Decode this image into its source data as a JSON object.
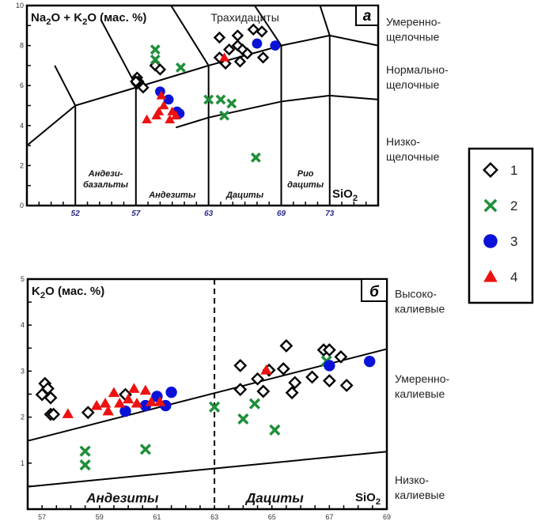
{
  "colors": {
    "diamond": "#000000",
    "cross": "#1f8f3a",
    "circle": "#0a12d8",
    "triangle": "#ee1111"
  },
  "legend": {
    "items": [
      {
        "symbol": "diamond",
        "label": "1"
      },
      {
        "symbol": "cross",
        "label": "2"
      },
      {
        "symbol": "circle",
        "label": "3"
      },
      {
        "symbol": "triangle",
        "label": "4"
      }
    ]
  },
  "chart_data": [
    {
      "type": "scatter",
      "panel_label": "а",
      "ylabel_parts": [
        "Na",
        "2",
        "O + K",
        "2",
        "O (мас. %)"
      ],
      "xlabel_parts": [
        "SiO",
        "2"
      ],
      "xlim": [
        48,
        77
      ],
      "ylim": [
        0,
        10
      ],
      "xticks": [
        52,
        57,
        63,
        69,
        73
      ],
      "yticks": [
        0,
        2,
        4,
        6,
        8,
        10
      ],
      "region_labels": [
        {
          "lines": [
            "Андези-",
            "базальты"
          ],
          "x": 54.5,
          "y": 0.9
        },
        {
          "lines": [
            "Андезиты"
          ],
          "x": 60,
          "y": 0.4
        },
        {
          "lines": [
            "Дациты"
          ],
          "x": 66,
          "y": 0.4
        },
        {
          "lines": [
            "Рио",
            "дациты"
          ],
          "x": 71,
          "y": 0.9
        },
        {
          "lines": [
            "Трахидациты"
          ],
          "x": 66,
          "y": 9.2,
          "plain": true
        }
      ],
      "side_labels": [
        {
          "lines": [
            "Умеренно-",
            "щелочные"
          ],
          "y": 9.0
        },
        {
          "lines": [
            "Нормально-",
            "щелочные"
          ],
          "y": 6.6
        },
        {
          "lines": [
            "Низко-",
            "щелочные"
          ],
          "y": 3.0
        }
      ],
      "boundaries": [
        [
          [
            48.1,
            3.05
          ],
          [
            52,
            5
          ],
          [
            57,
            5.9
          ],
          [
            63,
            7
          ],
          [
            69,
            8
          ],
          [
            73,
            8.5
          ],
          [
            77,
            8.0
          ]
        ],
        [
          [
            60.3,
            3.9
          ],
          [
            63,
            4.4
          ],
          [
            69,
            5.2
          ],
          [
            73,
            5.5
          ],
          [
            77,
            5.3
          ]
        ],
        [
          [
            52,
            0
          ],
          [
            52,
            5
          ],
          [
            50.3,
            7.0
          ]
        ],
        [
          [
            57,
            0
          ],
          [
            57,
            6
          ],
          [
            54.1,
            9.3
          ]
        ],
        [
          [
            63,
            0
          ],
          [
            63,
            7
          ],
          [
            59.9,
            10
          ]
        ],
        [
          [
            69,
            0
          ],
          [
            69,
            8
          ],
          [
            66.8,
            10
          ]
        ],
        [
          [
            73,
            0
          ],
          [
            73,
            8.5
          ],
          [
            72.2,
            10
          ]
        ]
      ],
      "series": [
        {
          "name": "1",
          "symbol": "diamond",
          "points": [
            [
              63.9,
              8.4
            ],
            [
              65.4,
              8.5
            ],
            [
              66.7,
              8.8
            ],
            [
              67.4,
              8.7
            ],
            [
              64.7,
              7.8
            ],
            [
              65.4,
              8.0
            ],
            [
              65.8,
              7.8
            ],
            [
              63.9,
              7.4
            ],
            [
              64.4,
              7.1
            ],
            [
              65.6,
              7.2
            ],
            [
              66.2,
              7.6
            ],
            [
              67.5,
              7.4
            ],
            [
              58.6,
              7.0
            ],
            [
              59.0,
              6.8
            ],
            [
              57.6,
              5.9
            ],
            [
              57.1,
              6.1
            ],
            [
              57.1,
              6.4
            ],
            [
              57.2,
              6.2
            ],
            [
              57.0,
              6.2
            ]
          ]
        },
        {
          "name": "2",
          "symbol": "cross",
          "points": [
            [
              58.6,
              7.8
            ],
            [
              58.6,
              7.3
            ],
            [
              60.7,
              6.9
            ],
            [
              63.0,
              5.3
            ],
            [
              64.0,
              5.3
            ],
            [
              64.9,
              5.1
            ],
            [
              64.3,
              4.5
            ],
            [
              66.9,
              2.4
            ]
          ]
        },
        {
          "name": "3",
          "symbol": "circle",
          "points": [
            [
              59.0,
              5.7
            ],
            [
              59.7,
              5.3
            ],
            [
              60.4,
              4.7
            ],
            [
              60.6,
              4.6
            ],
            [
              67.0,
              8.1
            ],
            [
              68.5,
              8.0
            ]
          ]
        },
        {
          "name": "4",
          "symbol": "triangle",
          "points": [
            [
              57.9,
              4.3
            ],
            [
              58.9,
              4.7
            ],
            [
              59.3,
              5.0
            ],
            [
              59.1,
              5.5
            ],
            [
              60.0,
              4.7
            ],
            [
              59.8,
              4.3
            ],
            [
              60.3,
              4.5
            ],
            [
              58.7,
              4.5
            ],
            [
              64.3,
              7.4
            ]
          ]
        }
      ]
    },
    {
      "type": "scatter",
      "panel_label": "б",
      "ylabel_parts": [
        "K",
        "2",
        "O (мас. %)"
      ],
      "xlabel_parts": [
        "SiO",
        "2"
      ],
      "xlim": [
        56.5,
        69
      ],
      "ylim": [
        0,
        5
      ],
      "xticks": [
        57,
        59,
        61,
        63,
        65,
        67,
        69
      ],
      "yticks": [
        1,
        2,
        3,
        4,
        5
      ],
      "region_labels": [
        {
          "lines": [
            "Андезиты"
          ],
          "x": 59.8,
          "y": 0.15
        },
        {
          "lines": [
            "Дациты"
          ],
          "x": 65.1,
          "y": 0.15
        }
      ],
      "side_labels": [
        {
          "lines": [
            "Высоко-",
            "калиевые"
          ],
          "y": 4.6
        },
        {
          "lines": [
            "Умеренно-",
            "калиевые"
          ],
          "y": 2.75
        },
        {
          "lines": [
            "Низко-",
            "калиевые"
          ],
          "y": 0.55
        }
      ],
      "divider_x": 63,
      "boundaries": [
        [
          [
            56.54,
            1.49
          ],
          [
            69,
            3.48
          ]
        ],
        [
          [
            56.54,
            0.49
          ],
          [
            69,
            1.25
          ]
        ]
      ],
      "series": [
        {
          "name": "1",
          "symbol": "diamond",
          "points": [
            [
              57.1,
              2.73
            ],
            [
              57.2,
              2.62
            ],
            [
              57.0,
              2.49
            ],
            [
              57.3,
              2.42
            ],
            [
              57.3,
              2.06
            ],
            [
              57.4,
              2.06
            ],
            [
              58.6,
              2.1
            ],
            [
              59.9,
              2.49
            ],
            [
              63.9,
              3.12
            ],
            [
              63.9,
              2.6
            ],
            [
              64.5,
              2.83
            ],
            [
              64.7,
              2.56
            ],
            [
              64.9,
              3.02
            ],
            [
              65.4,
              3.05
            ],
            [
              65.5,
              3.55
            ],
            [
              65.7,
              2.53
            ],
            [
              65.8,
              2.75
            ],
            [
              66.4,
              2.87
            ],
            [
              66.8,
              3.46
            ],
            [
              67.0,
              3.46
            ],
            [
              67.0,
              2.79
            ],
            [
              67.4,
              3.31
            ],
            [
              67.6,
              2.69
            ]
          ]
        },
        {
          "name": "2",
          "symbol": "cross",
          "points": [
            [
              58.5,
              1.26
            ],
            [
              58.5,
              0.96
            ],
            [
              60.6,
              1.3
            ],
            [
              63.0,
              2.22
            ],
            [
              64.0,
              1.96
            ],
            [
              64.4,
              2.29
            ],
            [
              65.1,
              1.72
            ],
            [
              66.9,
              3.22
            ]
          ]
        },
        {
          "name": "3",
          "symbol": "circle",
          "points": [
            [
              59.9,
              2.13
            ],
            [
              60.6,
              2.25
            ],
            [
              61.0,
              2.45
            ],
            [
              61.3,
              2.25
            ],
            [
              61.5,
              2.54
            ],
            [
              67.0,
              3.12
            ],
            [
              68.4,
              3.21
            ]
          ]
        },
        {
          "name": "4",
          "symbol": "triangle",
          "points": [
            [
              57.9,
              2.07
            ],
            [
              58.9,
              2.25
            ],
            [
              59.2,
              2.3
            ],
            [
              59.3,
              2.13
            ],
            [
              59.5,
              2.53
            ],
            [
              59.7,
              2.3
            ],
            [
              60.2,
              2.62
            ],
            [
              60.3,
              2.3
            ],
            [
              60.6,
              2.58
            ],
            [
              60.8,
              2.33
            ],
            [
              61.1,
              2.33
            ],
            [
              60.0,
              2.39
            ],
            [
              64.8,
              3.02
            ]
          ]
        }
      ]
    }
  ]
}
